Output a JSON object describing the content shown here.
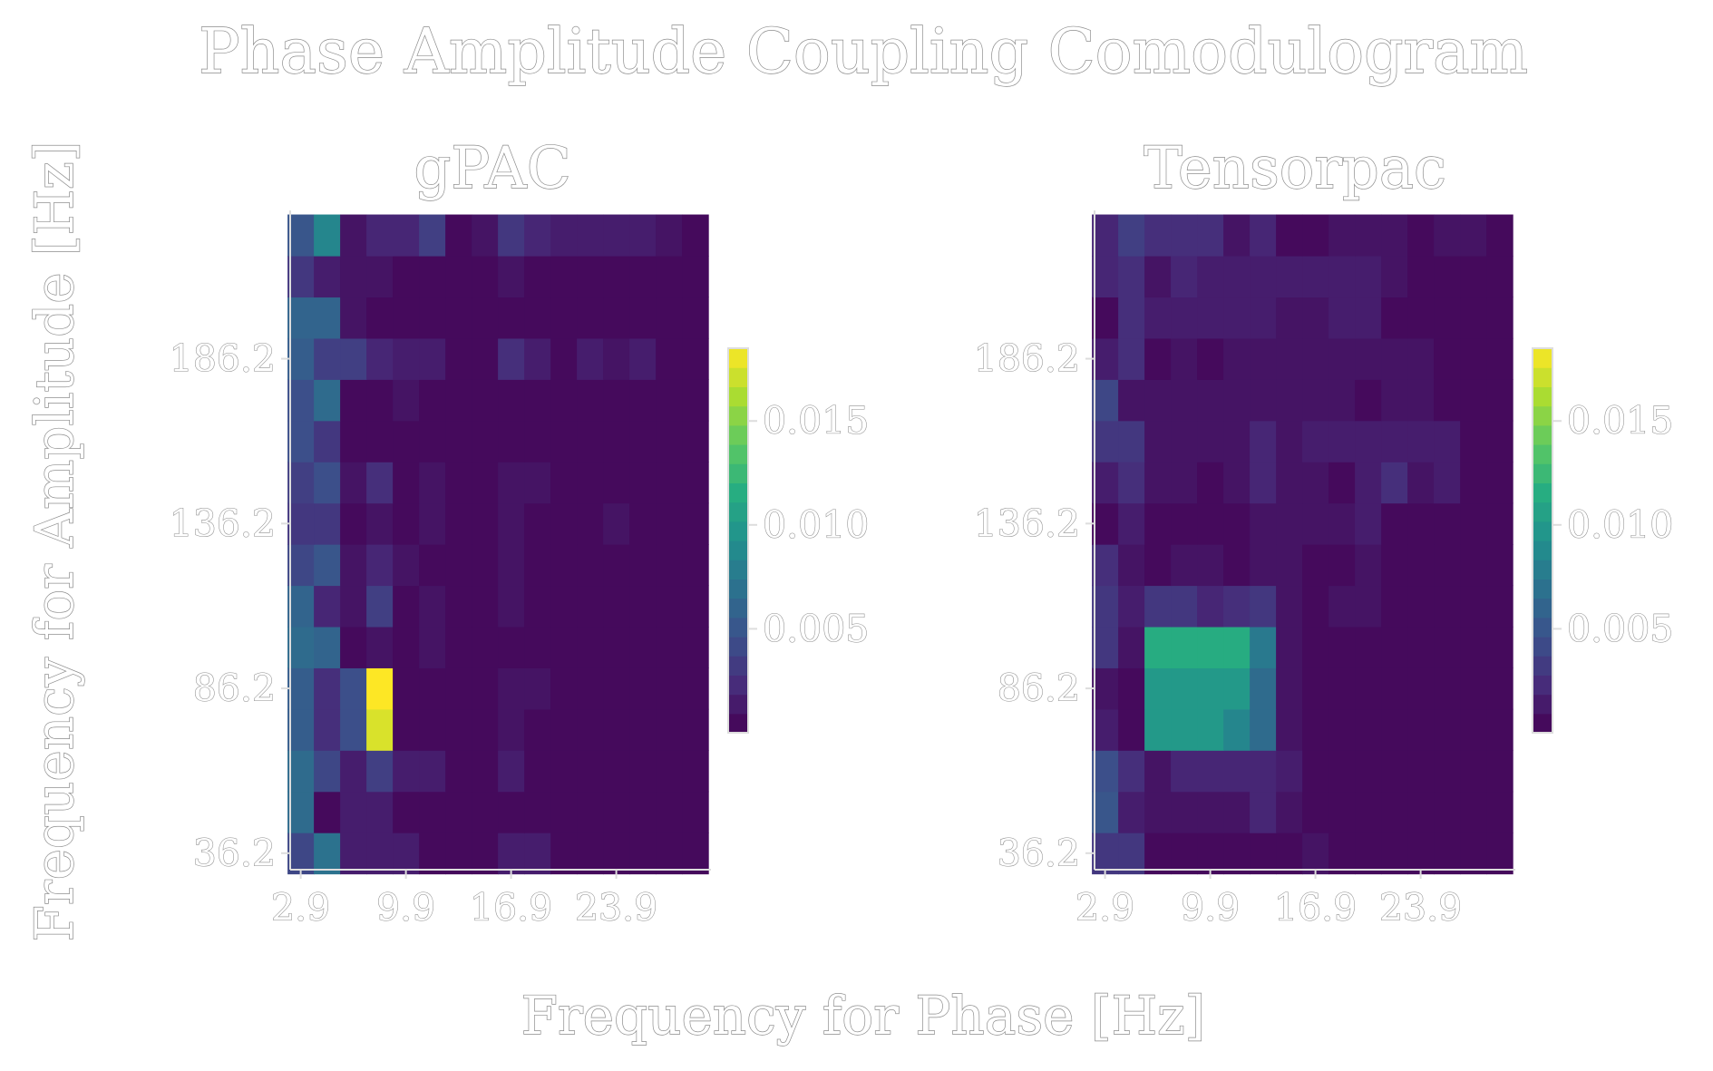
{
  "title": "Phase Amplitude Coupling Comodulogram",
  "xlabel": "Frequency for Phase [Hz]",
  "ylabel": "Frequency for Amplitude [Hz]",
  "colors": {
    "viridis": [
      "#440154",
      "#472c7a",
      "#3b518b",
      "#2c718e",
      "#21908d",
      "#27ad81",
      "#5cc863",
      "#aadc32",
      "#fde725"
    ],
    "text_fill": "#ffffff",
    "text_stroke": "#8c8c8c"
  },
  "chart_data": [
    {
      "type": "heatmap",
      "title": "gPAC",
      "x_ticks": [
        "2.9",
        "9.9",
        "16.9",
        "23.9"
      ],
      "y_ticks": [
        "36.2",
        "86.2",
        "136.2",
        "186.2"
      ],
      "x_tick_values": [
        2.9,
        9.9,
        16.9,
        23.9
      ],
      "y_tick_values": [
        36.2,
        86.2,
        136.2,
        186.2
      ],
      "x_range": [
        2.2,
        30.2
      ],
      "y_range": [
        31.2,
        231.2
      ],
      "x_centers": [
        2.9,
        4.65,
        6.4,
        8.15,
        9.9,
        11.65,
        13.4,
        15.15,
        16.9,
        18.65,
        20.4,
        22.15,
        23.9,
        25.65,
        27.4,
        29.15
      ],
      "y_centers": [
        36.2,
        48.7,
        61.2,
        73.7,
        86.2,
        98.7,
        111.2,
        123.7,
        136.2,
        148.7,
        161.2,
        173.7,
        186.2,
        198.7,
        211.2,
        223.7
      ],
      "colorbar": {
        "ticks": [
          "0.005",
          "0.010",
          "0.015"
        ],
        "tick_values": [
          0.005,
          0.01,
          0.015
        ],
        "min": 0.0,
        "max": 0.0185
      },
      "values": [
        [
          0.004,
          0.007,
          0.0015,
          0.0015,
          0.0015,
          0.0005,
          0.0005,
          0.0005,
          0.0015,
          0.0015,
          0.0005,
          0.0005,
          0.0005,
          0.0005,
          0.0005,
          0.0005
        ],
        [
          0.0065,
          0.0005,
          0.0015,
          0.0015,
          0.0005,
          0.0005,
          0.0005,
          0.0005,
          0.0005,
          0.0005,
          0.0005,
          0.0005,
          0.0005,
          0.0005,
          0.0005,
          0.0005
        ],
        [
          0.0065,
          0.004,
          0.0015,
          0.0035,
          0.0015,
          0.0015,
          0.0005,
          0.0005,
          0.0015,
          0.0005,
          0.0005,
          0.0005,
          0.0005,
          0.0005,
          0.0005,
          0.0005
        ],
        [
          0.0055,
          0.0025,
          0.0045,
          0.0175,
          0.0005,
          0.0005,
          0.0005,
          0.0005,
          0.001,
          0.0005,
          0.0005,
          0.0005,
          0.0005,
          0.0005,
          0.0005,
          0.0005
        ],
        [
          0.0055,
          0.0025,
          0.0045,
          0.0185,
          0.0005,
          0.0005,
          0.0005,
          0.0005,
          0.001,
          0.001,
          0.0005,
          0.0005,
          0.0005,
          0.0005,
          0.0005,
          0.0005
        ],
        [
          0.0065,
          0.006,
          0.0005,
          0.001,
          0.0005,
          0.001,
          0.0005,
          0.0005,
          0.0005,
          0.0005,
          0.0005,
          0.0005,
          0.0005,
          0.0005,
          0.0005,
          0.0005
        ],
        [
          0.006,
          0.002,
          0.001,
          0.0035,
          0.0005,
          0.001,
          0.0005,
          0.0005,
          0.001,
          0.0005,
          0.0005,
          0.0005,
          0.0005,
          0.0005,
          0.0005,
          0.0005
        ],
        [
          0.004,
          0.005,
          0.001,
          0.002,
          0.001,
          0.0005,
          0.0005,
          0.0005,
          0.001,
          0.0005,
          0.0005,
          0.0005,
          0.0005,
          0.0005,
          0.0005,
          0.0005
        ],
        [
          0.003,
          0.003,
          0.0005,
          0.001,
          0.0005,
          0.001,
          0.0005,
          0.0005,
          0.001,
          0.0005,
          0.0005,
          0.0005,
          0.001,
          0.0005,
          0.0005,
          0.0005
        ],
        [
          0.0035,
          0.0045,
          0.001,
          0.0025,
          0.0005,
          0.001,
          0.0005,
          0.0005,
          0.001,
          0.001,
          0.0005,
          0.0005,
          0.0005,
          0.0005,
          0.0005,
          0.0005
        ],
        [
          0.0045,
          0.003,
          0.0005,
          0.0005,
          0.0005,
          0.0005,
          0.0005,
          0.0005,
          0.0005,
          0.0005,
          0.0005,
          0.0005,
          0.0005,
          0.0005,
          0.0005,
          0.0005
        ],
        [
          0.0045,
          0.0065,
          0.0005,
          0.0005,
          0.001,
          0.0005,
          0.0005,
          0.0005,
          0.0005,
          0.0005,
          0.0005,
          0.0005,
          0.0005,
          0.0005,
          0.0005,
          0.0005
        ],
        [
          0.0055,
          0.0035,
          0.0035,
          0.002,
          0.0015,
          0.0015,
          0.0005,
          0.0005,
          0.0025,
          0.0015,
          0.0005,
          0.0015,
          0.001,
          0.0015,
          0.0005,
          0.0005
        ],
        [
          0.006,
          0.006,
          0.001,
          0.0005,
          0.0005,
          0.0005,
          0.0005,
          0.0005,
          0.0005,
          0.0005,
          0.0005,
          0.0005,
          0.0005,
          0.0005,
          0.0005,
          0.0005
        ],
        [
          0.003,
          0.0015,
          0.001,
          0.001,
          0.0005,
          0.0005,
          0.0005,
          0.0005,
          0.001,
          0.0005,
          0.0005,
          0.0005,
          0.0005,
          0.0005,
          0.0005,
          0.0005
        ],
        [
          0.005,
          0.0085,
          0.001,
          0.002,
          0.002,
          0.0035,
          0.0005,
          0.001,
          0.003,
          0.002,
          0.0015,
          0.0015,
          0.0015,
          0.0015,
          0.001,
          0.0005
        ]
      ]
    },
    {
      "type": "heatmap",
      "title": "Tensorpac",
      "x_ticks": [
        "2.9",
        "9.9",
        "16.9",
        "23.9"
      ],
      "y_ticks": [
        "36.2",
        "86.2",
        "136.2",
        "186.2"
      ],
      "x_tick_values": [
        2.9,
        9.9,
        16.9,
        23.9
      ],
      "y_tick_values": [
        36.2,
        86.2,
        136.2,
        186.2
      ],
      "x_range": [
        2.2,
        30.2
      ],
      "y_range": [
        31.2,
        231.2
      ],
      "x_centers": [
        2.9,
        4.65,
        6.4,
        8.15,
        9.9,
        11.65,
        13.4,
        15.15,
        16.9,
        18.65,
        20.4,
        22.15,
        23.9,
        25.65,
        27.4,
        29.15
      ],
      "y_centers": [
        36.2,
        48.7,
        61.2,
        73.7,
        86.2,
        98.7,
        111.2,
        123.7,
        136.2,
        148.7,
        161.2,
        173.7,
        186.2,
        198.7,
        211.2,
        223.7
      ],
      "colorbar": {
        "ticks": [
          "0.005",
          "0.010",
          "0.015"
        ],
        "tick_values": [
          0.005,
          0.01,
          0.015
        ],
        "min": 0.0,
        "max": 0.0185
      },
      "values": [
        [
          0.003,
          0.003,
          0.0005,
          0.0005,
          0.0005,
          0.0005,
          0.0005,
          0.0005,
          0.001,
          0.0005,
          0.0005,
          0.0005,
          0.0005,
          0.0005,
          0.0005,
          0.0005
        ],
        [
          0.005,
          0.0015,
          0.001,
          0.001,
          0.001,
          0.001,
          0.002,
          0.001,
          0.0005,
          0.0005,
          0.0005,
          0.0005,
          0.0005,
          0.0005,
          0.0005,
          0.0005
        ],
        [
          0.0045,
          0.0025,
          0.001,
          0.002,
          0.002,
          0.002,
          0.002,
          0.0015,
          0.0005,
          0.0005,
          0.0005,
          0.0005,
          0.0005,
          0.0005,
          0.0005,
          0.0005
        ],
        [
          0.0015,
          0.0005,
          0.01,
          0.01,
          0.01,
          0.0085,
          0.0065,
          0.001,
          0.0005,
          0.0005,
          0.0005,
          0.0005,
          0.0005,
          0.0005,
          0.0005,
          0.0005
        ],
        [
          0.001,
          0.0005,
          0.01,
          0.01,
          0.01,
          0.01,
          0.0065,
          0.001,
          0.0005,
          0.0005,
          0.0005,
          0.0005,
          0.0005,
          0.0005,
          0.0005,
          0.0005
        ],
        [
          0.003,
          0.001,
          0.0115,
          0.0115,
          0.0115,
          0.0115,
          0.0075,
          0.001,
          0.0005,
          0.0005,
          0.0005,
          0.0005,
          0.0005,
          0.0005,
          0.0005,
          0.0005
        ],
        [
          0.003,
          0.0015,
          0.003,
          0.003,
          0.002,
          0.0025,
          0.003,
          0.001,
          0.0005,
          0.001,
          0.001,
          0.0005,
          0.0005,
          0.0005,
          0.0005,
          0.0005
        ],
        [
          0.0025,
          0.001,
          0.0005,
          0.001,
          0.001,
          0.0005,
          0.001,
          0.001,
          0.0005,
          0.0005,
          0.001,
          0.0005,
          0.0005,
          0.0005,
          0.0005,
          0.0005
        ],
        [
          0.0005,
          0.0015,
          0.0005,
          0.0005,
          0.0005,
          0.0005,
          0.001,
          0.001,
          0.001,
          0.001,
          0.0015,
          0.0005,
          0.0005,
          0.0005,
          0.0005,
          0.0005
        ],
        [
          0.0015,
          0.0025,
          0.001,
          0.001,
          0.0005,
          0.001,
          0.002,
          0.001,
          0.001,
          0.0005,
          0.0015,
          0.0025,
          0.001,
          0.0015,
          0.0005,
          0.0005
        ],
        [
          0.003,
          0.003,
          0.001,
          0.001,
          0.001,
          0.001,
          0.002,
          0.001,
          0.0015,
          0.0015,
          0.0015,
          0.0015,
          0.0015,
          0.0015,
          0.0005,
          0.0005
        ],
        [
          0.004,
          0.001,
          0.001,
          0.001,
          0.001,
          0.001,
          0.001,
          0.001,
          0.001,
          0.001,
          0.0005,
          0.001,
          0.001,
          0.0005,
          0.0005,
          0.0005
        ],
        [
          0.0015,
          0.0025,
          0.0005,
          0.001,
          0.0005,
          0.001,
          0.001,
          0.001,
          0.001,
          0.001,
          0.001,
          0.001,
          0.001,
          0.0005,
          0.0005,
          0.0005
        ],
        [
          0.0005,
          0.0025,
          0.0015,
          0.0015,
          0.0015,
          0.0015,
          0.0015,
          0.001,
          0.001,
          0.0015,
          0.0015,
          0.0005,
          0.0005,
          0.0005,
          0.0005,
          0.0005
        ],
        [
          0.002,
          0.0025,
          0.001,
          0.002,
          0.0015,
          0.0015,
          0.0015,
          0.0015,
          0.0015,
          0.0015,
          0.0015,
          0.001,
          0.0005,
          0.0005,
          0.0005,
          0.0005
        ],
        [
          0.002,
          0.0035,
          0.0025,
          0.0025,
          0.0025,
          0.001,
          0.002,
          0.0005,
          0.0005,
          0.001,
          0.001,
          0.001,
          0.0005,
          0.001,
          0.001,
          0.0005
        ]
      ]
    }
  ]
}
